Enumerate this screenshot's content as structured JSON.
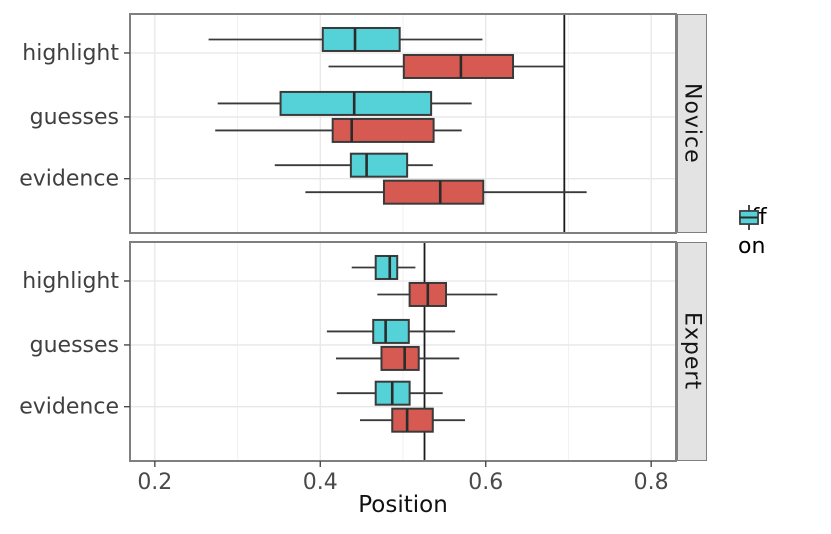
{
  "chart_data": {
    "type": "boxplot",
    "orientation": "horizontal",
    "xlabel": "Position",
    "x_domain": [
      0.17,
      0.83
    ],
    "x_ticks": [
      0.2,
      0.4,
      0.6,
      0.8
    ],
    "x_tick_labels": [
      "0.2",
      "0.4",
      "0.6",
      "0.8"
    ],
    "x_minor_ticks": [
      0.3,
      0.5,
      0.7
    ],
    "categories": [
      "highlight",
      "guesses",
      "evidence"
    ],
    "series_order": [
      "on",
      "off"
    ],
    "facets": [
      {
        "label": "Novice",
        "vline": 0.695,
        "boxes": [
          {
            "category": "highlight",
            "series": "on",
            "lo": 0.265,
            "q1": 0.403,
            "med": 0.442,
            "q3": 0.496,
            "hi": 0.596
          },
          {
            "category": "highlight",
            "series": "off",
            "lo": 0.41,
            "q1": 0.501,
            "med": 0.57,
            "q3": 0.633,
            "hi": 0.695
          },
          {
            "category": "guesses",
            "series": "on",
            "lo": 0.276,
            "q1": 0.352,
            "med": 0.441,
            "q3": 0.534,
            "hi": 0.583
          },
          {
            "category": "guesses",
            "series": "off",
            "lo": 0.273,
            "q1": 0.415,
            "med": 0.438,
            "q3": 0.537,
            "hi": 0.571
          },
          {
            "category": "evidence",
            "series": "on",
            "lo": 0.345,
            "q1": 0.437,
            "med": 0.456,
            "q3": 0.505,
            "hi": 0.536
          },
          {
            "category": "evidence",
            "series": "off",
            "lo": 0.382,
            "q1": 0.477,
            "med": 0.545,
            "q3": 0.597,
            "hi": 0.722
          }
        ]
      },
      {
        "label": "Expert",
        "vline": 0.526,
        "boxes": [
          {
            "category": "highlight",
            "series": "on",
            "lo": 0.438,
            "q1": 0.467,
            "med": 0.484,
            "q3": 0.493,
            "hi": 0.515
          },
          {
            "category": "highlight",
            "series": "off",
            "lo": 0.469,
            "q1": 0.508,
            "med": 0.53,
            "q3": 0.552,
            "hi": 0.614
          },
          {
            "category": "guesses",
            "series": "on",
            "lo": 0.408,
            "q1": 0.464,
            "med": 0.479,
            "q3": 0.507,
            "hi": 0.563
          },
          {
            "category": "guesses",
            "series": "off",
            "lo": 0.419,
            "q1": 0.474,
            "med": 0.502,
            "q3": 0.519,
            "hi": 0.568
          },
          {
            "category": "evidence",
            "series": "on",
            "lo": 0.42,
            "q1": 0.467,
            "med": 0.487,
            "q3": 0.508,
            "hi": 0.548
          },
          {
            "category": "evidence",
            "series": "off",
            "lo": 0.448,
            "q1": 0.487,
            "med": 0.505,
            "q3": 0.536,
            "hi": 0.575
          }
        ]
      }
    ],
    "legend": {
      "position": "right",
      "items": [
        {
          "label": "off",
          "color": "#D65A52"
        },
        {
          "label": "on",
          "color": "#55D1D8"
        }
      ]
    },
    "colors": {
      "box_outline": "#3A3A3A",
      "median": "#2B2B2B",
      "whisker": "#3A3A3A",
      "vline": "#1A1A1A",
      "panel_border": "#7F7F7F",
      "strip_fill": "#E3E3E3",
      "grid_major": "#E7E7E7",
      "grid_minor": "#F2F2F2",
      "axis_text": "#4A4A4A",
      "category_text": "#404040",
      "background": "#FFFFFF"
    }
  }
}
